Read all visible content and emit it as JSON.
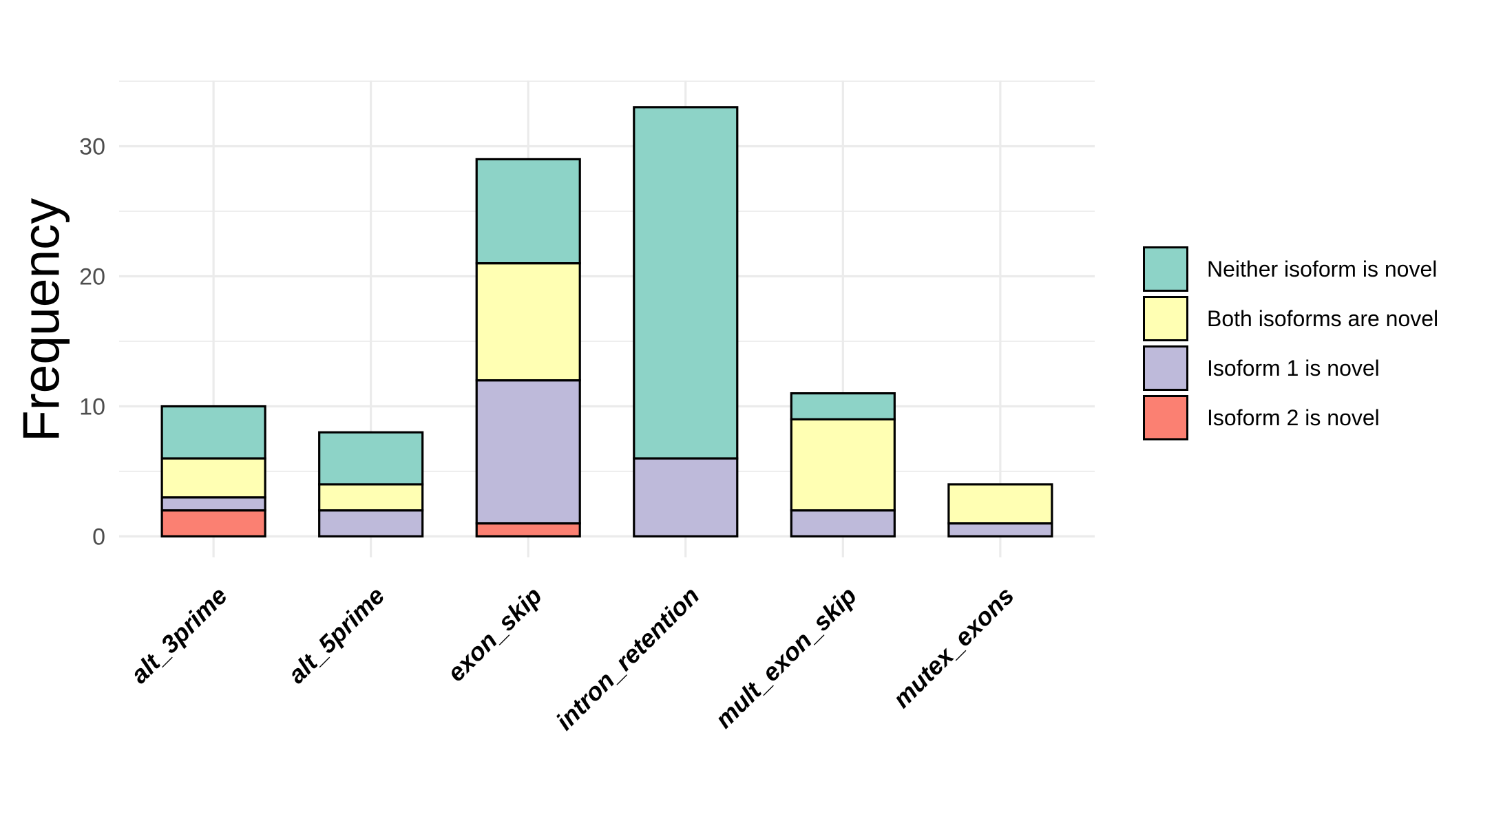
{
  "chart_data": {
    "type": "bar",
    "subtype": "stacked_vertical",
    "title": "",
    "xlabel": "",
    "ylabel": "Frequency",
    "categories": [
      "alt_3prime",
      "alt_5prime",
      "exon_skip",
      "intron_retention",
      "mult_exon_skip",
      "mutex_exons"
    ],
    "series": [
      {
        "name": "Isoform 2 is novel",
        "color": "#FB8072",
        "values": [
          2,
          0,
          1,
          0,
          0,
          0
        ]
      },
      {
        "name": "Isoform 1 is novel",
        "color": "#BEBADA",
        "values": [
          1,
          2,
          11,
          6,
          2,
          1
        ]
      },
      {
        "name": "Both isoforms are novel",
        "color": "#FFFFB3",
        "values": [
          3,
          2,
          9,
          0,
          7,
          3
        ]
      },
      {
        "name": "Neither isoform is novel",
        "color": "#8DD3C7",
        "values": [
          4,
          4,
          8,
          27,
          2,
          0
        ]
      }
    ],
    "stack_order": "bottom_to_top",
    "stack_totals": [
      10,
      8,
      29,
      33,
      11,
      4
    ],
    "y_ticks": [
      0,
      10,
      20,
      30
    ],
    "y_minor_ticks": [
      5,
      15,
      25,
      35
    ],
    "ylim": [
      0,
      35
    ],
    "grid": "major_and_minor_horizontal_plus_major_vertical",
    "legend_position": "right",
    "bar_outline_color": "#000000"
  },
  "legend": {
    "items": [
      {
        "label": "Neither isoform is novel",
        "color": "#8DD3C7"
      },
      {
        "label": "Both isoforms are novel",
        "color": "#FFFFB3"
      },
      {
        "label": "Isoform 1 is novel",
        "color": "#BEBADA"
      },
      {
        "label": "Isoform 2 is novel",
        "color": "#FB8072"
      }
    ]
  },
  "colors": {
    "background": "#FFFFFF",
    "gridline": "#EBEBEB",
    "axis_tick_text": "#4D4D4D",
    "axis_category_text": "#000000",
    "bar_outline": "#000000"
  }
}
